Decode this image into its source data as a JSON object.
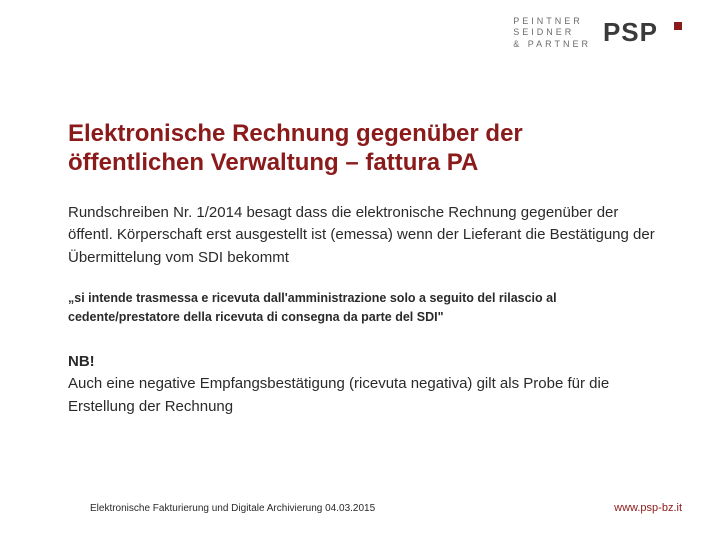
{
  "logo": {
    "line1": "PEINTNER",
    "line2": "SEIDNER",
    "line3": "& PARTNER",
    "psp": "PSP"
  },
  "title": "Elektronische Rechnung gegenüber der öffentlichen Verwaltung – fattura PA",
  "paragraph": "Rundschreiben Nr. 1/2014 besagt dass die elektronische Rechnung gegenüber der öffentl. Körperschaft erst ausgestellt ist (emessa) wenn der Lieferant die Bestätigung der Übermittelung vom SDI bekommt",
  "quote": "„si intende trasmessa e ricevuta dall'amministrazione solo a seguito del rilascio al cedente/prestatore della ricevuta di consegna da parte del SDI\"",
  "note_nb": "NB!",
  "note_body": "Auch eine negative Empfangsbestätigung (ricevuta negativa) gilt als Probe für die Erstellung der Rechnung",
  "footer_left": "Elektronische Fakturierung und Digitale Archivierung  04.03.2015",
  "footer_right": "www.psp-bz.it",
  "colors": {
    "accent": "#8b1a1a",
    "text": "#2a2a2a",
    "logo_gray": "#6b6b6b",
    "bg": "#ffffff"
  }
}
